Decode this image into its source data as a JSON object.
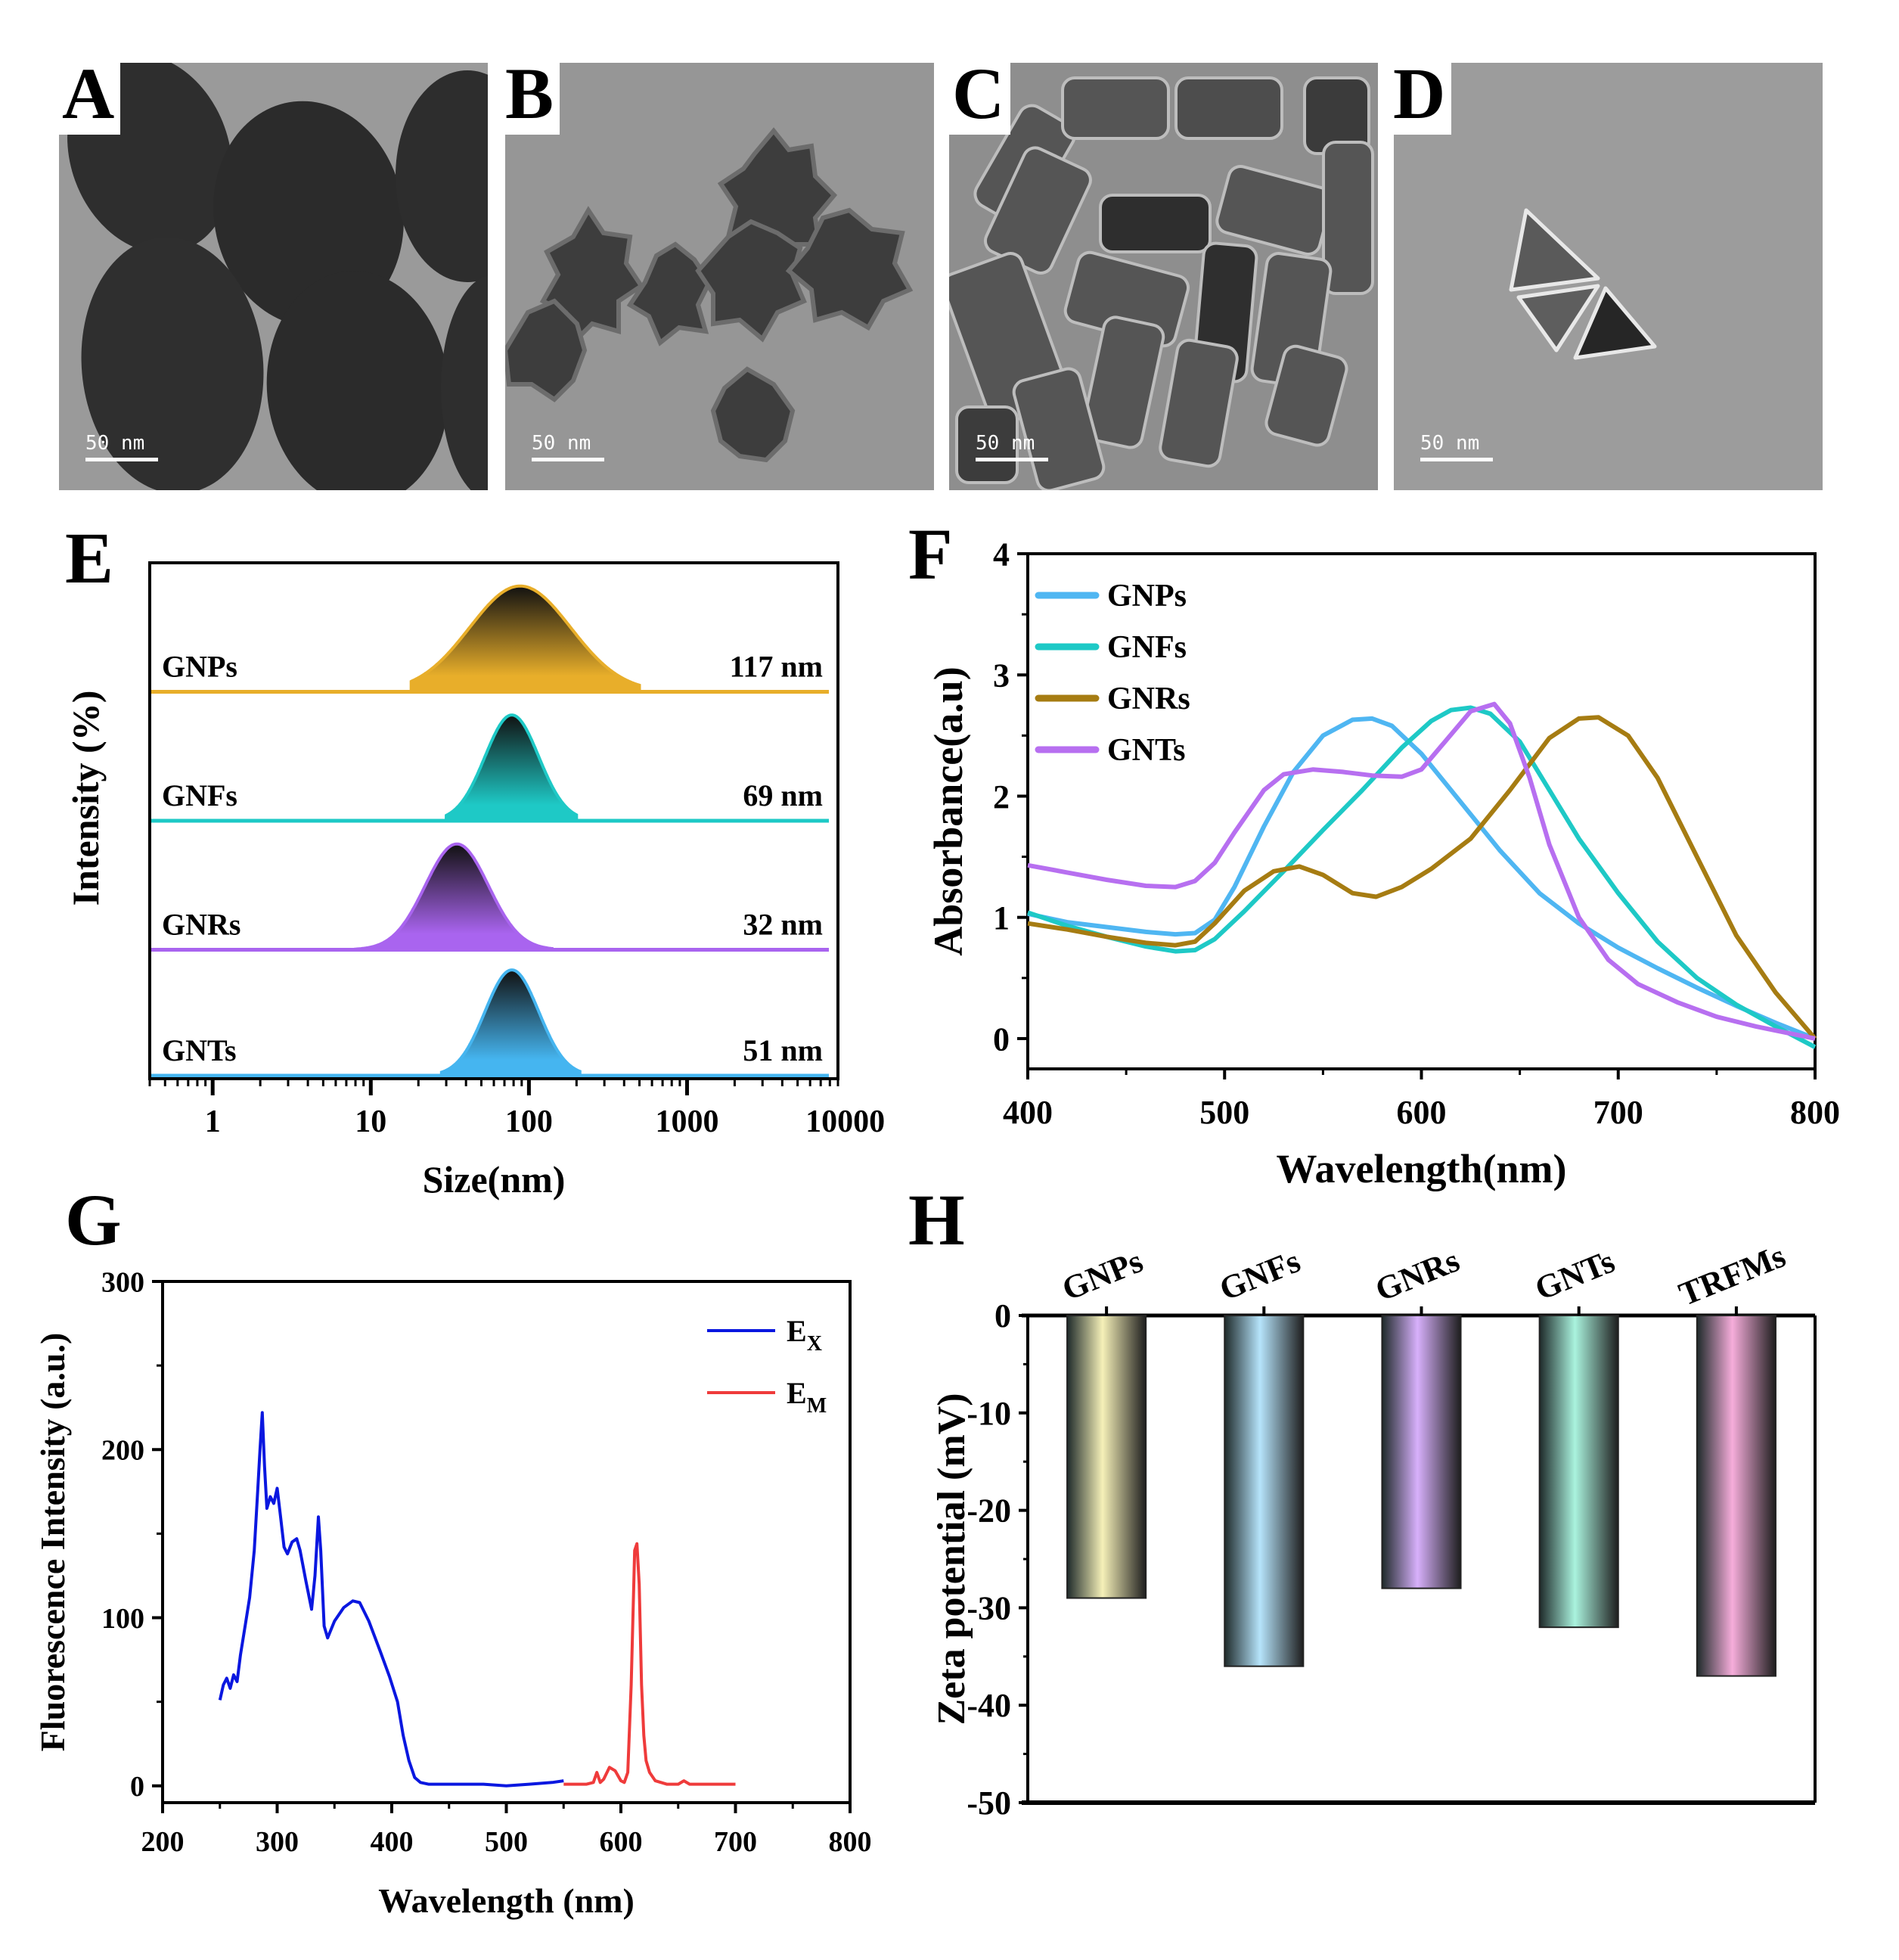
{
  "figure": {
    "panels": {
      "A": {
        "letter": "A",
        "scale_bar": "50 nm",
        "subject": "GNPs (spherical gold nanoparticles) TEM"
      },
      "B": {
        "letter": "B",
        "scale_bar": "50 nm",
        "subject": "GNFs (gold nanoflowers) TEM"
      },
      "C": {
        "letter": "C",
        "scale_bar": "50 nm",
        "subject": "GNRs (gold nanorods) TEM"
      },
      "D": {
        "letter": "D",
        "scale_bar": "50 nm",
        "subject": "GNTs (gold nanotriangles) TEM"
      },
      "E": {
        "letter": "E"
      },
      "F": {
        "letter": "F"
      },
      "G": {
        "letter": "G"
      },
      "H": {
        "letter": "H"
      }
    }
  },
  "chart_data": [
    {
      "id": "E",
      "type": "area",
      "title": "",
      "xlabel": "Size(nm)",
      "ylabel": "Intensity (%)",
      "xscale": "log",
      "xlim": [
        0.4,
        9000
      ],
      "xticks": [
        "1",
        "10",
        "100",
        "1000",
        "10000"
      ],
      "xtick_values": [
        1,
        10,
        100,
        1000,
        10000
      ],
      "grid": false,
      "series": [
        {
          "name": "GNPs",
          "label": "117 nm",
          "color": "#e8ae2a",
          "peak": 88,
          "lo": 18,
          "hi": 500,
          "width": 0.32
        },
        {
          "name": "GNFs",
          "label": "69 nm",
          "color": "#1ec9c6",
          "peak": 78,
          "lo": 30,
          "hi": 200,
          "width": 0.17
        },
        {
          "name": "GNRs",
          "label": "32 nm",
          "color": "#a964ef",
          "peak": 35,
          "lo": 8,
          "hi": 140,
          "width": 0.2
        },
        {
          "name": "GNTs",
          "label": "51 nm",
          "color": "#45b5f0",
          "peak": 78,
          "lo": 28,
          "hi": 210,
          "width": 0.17
        }
      ]
    },
    {
      "id": "F",
      "type": "line",
      "title": "",
      "xlabel": "Wavelength(nm)",
      "ylabel": "Absorbance(a.u)",
      "xlim": [
        400,
        800
      ],
      "ylim": [
        -0.25,
        4
      ],
      "xticks": [
        "400",
        "500",
        "600",
        "700",
        "800"
      ],
      "xtick_values": [
        400,
        500,
        600,
        700,
        800
      ],
      "yticks": [
        "0",
        "1",
        "2",
        "3",
        "4"
      ],
      "ytick_values": [
        0,
        1,
        2,
        3,
        4
      ],
      "legend": "top-left",
      "grid": false,
      "series": [
        {
          "name": "GNPs",
          "color": "#4fb6f2",
          "x": [
            400,
            420,
            440,
            460,
            475,
            485,
            495,
            505,
            520,
            535,
            550,
            565,
            575,
            585,
            600,
            620,
            640,
            660,
            680,
            700,
            720,
            740,
            760,
            780,
            800
          ],
          "y": [
            1.03,
            0.96,
            0.92,
            0.88,
            0.86,
            0.87,
            0.98,
            1.25,
            1.75,
            2.2,
            2.5,
            2.63,
            2.64,
            2.58,
            2.35,
            1.95,
            1.55,
            1.2,
            0.95,
            0.75,
            0.58,
            0.42,
            0.27,
            0.13,
            0.0
          ]
        },
        {
          "name": "GNFs",
          "color": "#1ec9c6",
          "x": [
            400,
            420,
            440,
            460,
            475,
            485,
            495,
            510,
            530,
            550,
            570,
            590,
            605,
            615,
            625,
            635,
            650,
            665,
            680,
            700,
            720,
            740,
            760,
            780,
            800
          ],
          "y": [
            1.04,
            0.93,
            0.84,
            0.76,
            0.72,
            0.73,
            0.82,
            1.05,
            1.38,
            1.72,
            2.05,
            2.4,
            2.62,
            2.71,
            2.73,
            2.68,
            2.45,
            2.05,
            1.65,
            1.2,
            0.8,
            0.5,
            0.28,
            0.1,
            -0.07
          ]
        },
        {
          "name": "GNRs",
          "color": "#a67c12",
          "x": [
            400,
            420,
            440,
            460,
            475,
            485,
            495,
            510,
            525,
            538,
            550,
            565,
            577,
            590,
            605,
            625,
            645,
            665,
            680,
            690,
            705,
            720,
            740,
            760,
            780,
            800
          ],
          "y": [
            0.95,
            0.9,
            0.84,
            0.79,
            0.77,
            0.8,
            0.95,
            1.22,
            1.38,
            1.42,
            1.35,
            1.2,
            1.17,
            1.25,
            1.4,
            1.65,
            2.05,
            2.48,
            2.64,
            2.65,
            2.5,
            2.15,
            1.5,
            0.85,
            0.38,
            0.0
          ]
        },
        {
          "name": "GNTs",
          "color": "#b76ff0",
          "x": [
            400,
            420,
            440,
            460,
            475,
            485,
            495,
            505,
            520,
            530,
            545,
            560,
            575,
            590,
            600,
            612,
            625,
            637,
            645,
            655,
            665,
            680,
            695,
            710,
            730,
            750,
            770,
            800
          ],
          "y": [
            1.43,
            1.37,
            1.31,
            1.26,
            1.25,
            1.3,
            1.45,
            1.7,
            2.05,
            2.18,
            2.22,
            2.2,
            2.17,
            2.16,
            2.22,
            2.45,
            2.7,
            2.76,
            2.6,
            2.15,
            1.6,
            1.0,
            0.65,
            0.45,
            0.3,
            0.18,
            0.1,
            0.0
          ]
        }
      ]
    },
    {
      "id": "G",
      "type": "line",
      "title": "",
      "xlabel": "Wavelength (nm)",
      "ylabel": "Fluorescence Intensity (a.u.)",
      "xlim": [
        200,
        800
      ],
      "ylim": [
        -10,
        300
      ],
      "xticks": [
        "200",
        "300",
        "400",
        "500",
        "600",
        "700",
        "800"
      ],
      "xtick_values": [
        200,
        300,
        400,
        500,
        600,
        700,
        800
      ],
      "yticks": [
        "0",
        "100",
        "200",
        "300"
      ],
      "ytick_values": [
        0,
        100,
        200,
        300
      ],
      "legend": "top-right",
      "grid": false,
      "series": [
        {
          "name": "E_X",
          "legend_main": "E",
          "legend_sub": "X",
          "color": "#0a17e0",
          "x": [
            250,
            253,
            256,
            259,
            262,
            265,
            268,
            272,
            276,
            280,
            283,
            285,
            287,
            289,
            291,
            294,
            297,
            300,
            303,
            306,
            309,
            313,
            317,
            320,
            325,
            330,
            333,
            336,
            338,
            341,
            344,
            350,
            358,
            366,
            372,
            380,
            390,
            398,
            405,
            410,
            415,
            420,
            425,
            432,
            445,
            460,
            480,
            500,
            520,
            540,
            550
          ],
          "y": [
            51,
            60,
            64,
            58,
            66,
            62,
            78,
            95,
            112,
            140,
            175,
            200,
            222,
            190,
            165,
            172,
            168,
            177,
            160,
            142,
            138,
            145,
            147,
            140,
            122,
            105,
            125,
            160,
            140,
            95,
            88,
            98,
            106,
            110,
            109,
            98,
            80,
            65,
            50,
            30,
            15,
            5,
            2,
            1,
            1,
            1,
            1,
            0,
            1,
            2,
            3
          ]
        },
        {
          "name": "E_M",
          "legend_main": "E",
          "legend_sub": "M",
          "color": "#ef3b3b",
          "x": [
            550,
            560,
            570,
            576,
            579,
            582,
            585,
            590,
            595,
            600,
            603,
            606,
            609,
            612,
            614,
            616,
            618,
            620,
            622,
            625,
            630,
            640,
            650,
            655,
            660,
            670,
            680,
            690,
            700
          ],
          "y": [
            1,
            1,
            1,
            2,
            8,
            2,
            4,
            11,
            9,
            3,
            2,
            8,
            60,
            140,
            144,
            120,
            60,
            30,
            15,
            8,
            3,
            1,
            1,
            3,
            1,
            1,
            1,
            1,
            1
          ]
        }
      ]
    },
    {
      "id": "H",
      "type": "bar",
      "title": "",
      "xlabel": "",
      "ylabel": "Zeta potential (mV)",
      "categories": [
        "GNPs",
        "GNFs",
        "GNRs",
        "GNTs",
        "TRFMs"
      ],
      "values": [
        -29,
        -36,
        -28,
        -32,
        -37
      ],
      "colors": [
        "#f5f0b8",
        "#b6e4fb",
        "#d7b0fb",
        "#aaf3de",
        "#f6addb"
      ],
      "ylim": [
        -50,
        0
      ],
      "yticks": [
        "0",
        "-10",
        "-20",
        "-30",
        "-40",
        "-50"
      ],
      "ytick_values": [
        0,
        -10,
        -20,
        -30,
        -40,
        -50
      ],
      "category_axis": "top",
      "grid": false
    }
  ]
}
